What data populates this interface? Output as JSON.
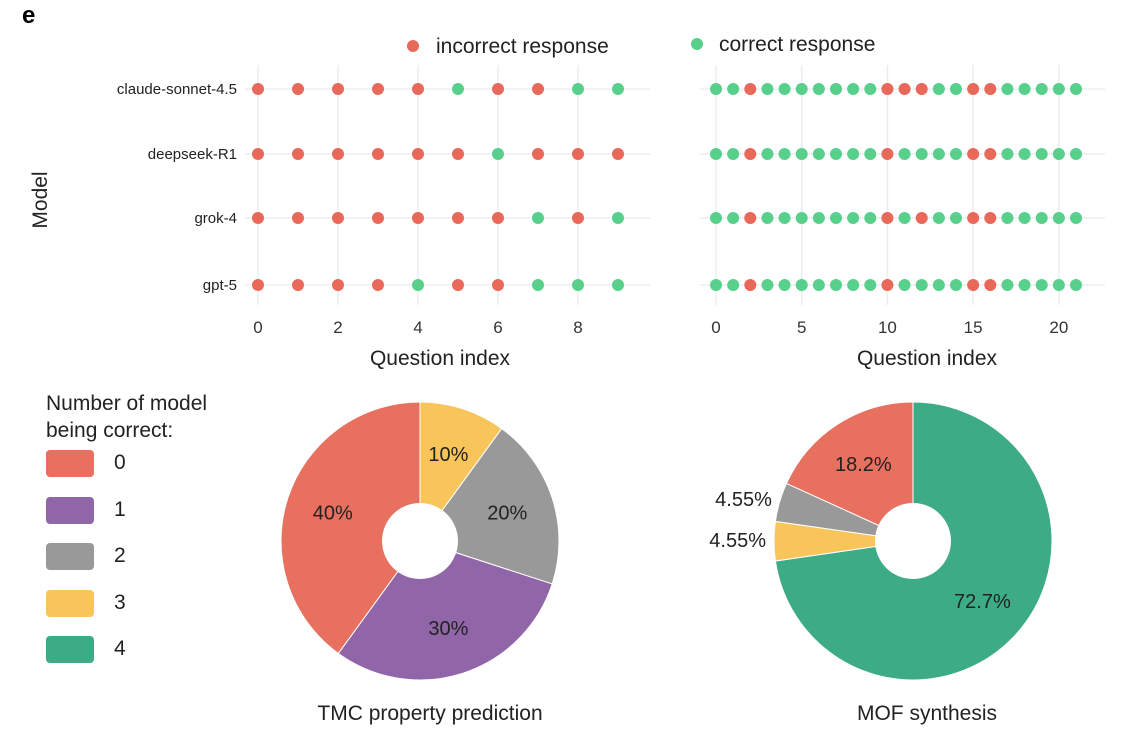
{
  "panel_label": "e",
  "legend_top": {
    "incorrect": "incorrect response",
    "correct": "correct response"
  },
  "colors": {
    "incorrect": "#e8685a",
    "correct": "#58d08c",
    "pie": [
      "#e8705f",
      "#9166a8",
      "#999999",
      "#f8c55a",
      "#3dab85"
    ]
  },
  "chart_data": [
    {
      "type": "scatter",
      "ylabel": "Model",
      "xlabel": "Question index",
      "models": [
        "claude-sonnet-4.5",
        "deepseek-R1",
        "grok-4",
        "gpt-5"
      ],
      "x_ticks": [
        0,
        2,
        4,
        6,
        8
      ],
      "xlim": [
        0,
        9
      ],
      "correct": [
        [
          0,
          0,
          0,
          0,
          0,
          1,
          0,
          0,
          1,
          1
        ],
        [
          0,
          0,
          0,
          0,
          0,
          0,
          1,
          0,
          0,
          0
        ],
        [
          0,
          0,
          0,
          0,
          0,
          0,
          0,
          1,
          0,
          1
        ],
        [
          0,
          0,
          0,
          0,
          1,
          0,
          0,
          1,
          1,
          1
        ]
      ]
    },
    {
      "type": "scatter",
      "xlabel": "Question index",
      "models": [
        "claude-sonnet-4.5",
        "deepseek-R1",
        "grok-4",
        "gpt-5"
      ],
      "x_ticks": [
        0,
        5,
        10,
        15,
        20
      ],
      "xlim": [
        0,
        21
      ],
      "correct": [
        [
          1,
          1,
          0,
          1,
          1,
          1,
          1,
          1,
          1,
          1,
          0,
          0,
          0,
          1,
          1,
          0,
          0,
          1,
          1,
          1,
          1,
          1
        ],
        [
          1,
          1,
          0,
          1,
          1,
          1,
          1,
          1,
          1,
          1,
          0,
          1,
          1,
          1,
          1,
          0,
          0,
          1,
          1,
          1,
          1,
          1
        ],
        [
          1,
          1,
          0,
          1,
          1,
          1,
          1,
          1,
          1,
          1,
          0,
          1,
          0,
          1,
          1,
          0,
          0,
          1,
          1,
          1,
          1,
          1
        ],
        [
          1,
          1,
          0,
          1,
          1,
          1,
          1,
          1,
          1,
          1,
          0,
          1,
          1,
          1,
          1,
          0,
          0,
          1,
          1,
          1,
          1,
          1
        ]
      ]
    },
    {
      "type": "pie",
      "title": "TMC property prediction",
      "categories": [
        "3",
        "2",
        "1",
        "0"
      ],
      "values": [
        10,
        20,
        30,
        40
      ],
      "labels": [
        "10%",
        "20%",
        "30%",
        "40%"
      ]
    },
    {
      "type": "pie",
      "title": "MOF synthesis",
      "categories": [
        "4",
        "3",
        "2",
        "0"
      ],
      "values": [
        72.7,
        4.55,
        4.55,
        18.2
      ],
      "labels": [
        "72.7%",
        "4.55%",
        "4.55%",
        "18.2%"
      ]
    }
  ],
  "pie_legend": {
    "title_line1": "Number of model",
    "title_line2": "being correct:",
    "items": [
      "0",
      "1",
      "2",
      "3",
      "4"
    ]
  }
}
